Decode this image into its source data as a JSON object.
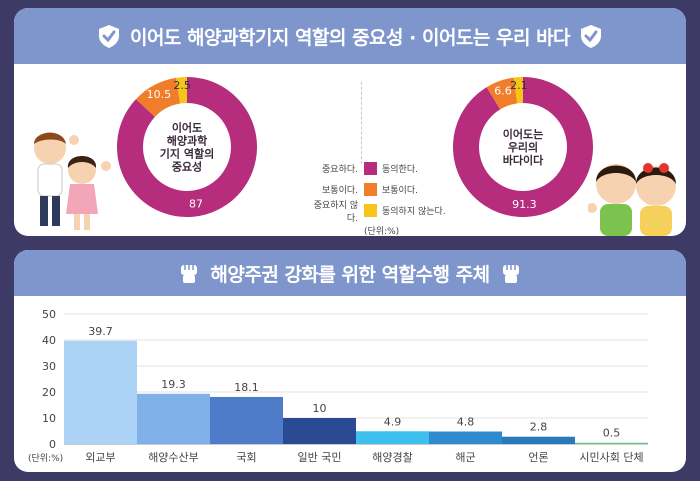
{
  "header_top": {
    "title": "이어도 해양과학기지 역할의 중요성 · 이어도는 우리 바다"
  },
  "header_bottom": {
    "title": "해양주권 강화를 위한 역할수행 주체"
  },
  "legend": {
    "items": [
      {
        "left": "중요하다.",
        "right": "동의한다.",
        "color": "#b62d7e"
      },
      {
        "left": "보통이다.",
        "right": "보통이다.",
        "color": "#ef7d2a"
      },
      {
        "left": "중요하지 않다.",
        "right": "동의하지 않는다.",
        "color": "#f5c51a"
      }
    ],
    "unit": "(단위:%)"
  },
  "colors": {
    "banner": "#7f96cd",
    "background": "#3d3a66",
    "magenta": "#b62d7e",
    "orange": "#ef7d2a",
    "yellow": "#f5c51a"
  },
  "chart_data": [
    {
      "type": "pie",
      "center_label": [
        "이어도",
        "해양과학",
        "기지 역할의",
        "중요성"
      ],
      "categories": [
        "중요하다.",
        "보통이다.",
        "중요하지 않다."
      ],
      "values": [
        87,
        10.5,
        2.5
      ],
      "labels": [
        "87",
        "10.5",
        "2.5"
      ],
      "colors": [
        "#b62d7e",
        "#ef7d2a",
        "#f5c51a"
      ]
    },
    {
      "type": "pie",
      "center_label": [
        "이어도는",
        "우리의",
        "바다이다"
      ],
      "categories": [
        "동의한다.",
        "보통이다.",
        "동의하지 않는다."
      ],
      "values": [
        91.3,
        6.6,
        2.1
      ],
      "labels": [
        "91.3",
        "6.6",
        "2.1"
      ],
      "colors": [
        "#b62d7e",
        "#ef7d2a",
        "#f5c51a"
      ]
    },
    {
      "type": "bar",
      "categories": [
        "외교부",
        "해양수산부",
        "국회",
        "일반 국민",
        "해양경찰",
        "해군",
        "언론",
        "시민사회 단체"
      ],
      "values": [
        39.7,
        19.3,
        18.1,
        10,
        4.9,
        4.8,
        2.8,
        0.5
      ],
      "labels": [
        "39.7",
        "19.3",
        "18.1",
        "10",
        "4.9",
        "4.8",
        "2.8",
        "0.5"
      ],
      "colors": [
        "#acd3f5",
        "#7fb0e8",
        "#4f7cc9",
        "#2b4a94",
        "#3ec0ee",
        "#2d8bd0",
        "#2a79b8",
        "#6fc28a"
      ],
      "yticks": [
        "0",
        "10",
        "20",
        "30",
        "40",
        "50"
      ],
      "ylim": [
        0,
        50
      ],
      "unit": "(단위:%)",
      "grid": true
    }
  ]
}
